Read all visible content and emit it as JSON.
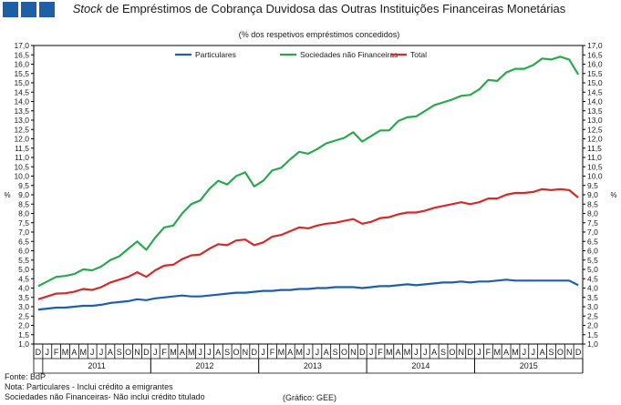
{
  "logo": {
    "colors": [
      "#1f5fa8",
      "#1f5fa8",
      "#1f5fa8"
    ]
  },
  "chart_data": {
    "type": "line",
    "title_italic": "Stock",
    "title_rest": " de Empréstimos de Cobrança Duvidosa das Outras Instituições Financeiras Monetárias",
    "subtitle": "(% dos respetivos empréstimos concedidos)",
    "ylabel": "%",
    "ylim": [
      1.0,
      17.0
    ],
    "ytick_step": 0.5,
    "month_labels": [
      "D",
      "J",
      "F",
      "M",
      "A",
      "M",
      "J",
      "J",
      "A",
      "S",
      "O",
      "N",
      "D",
      "J",
      "F",
      "M",
      "A",
      "M",
      "J",
      "J",
      "A",
      "S",
      "O",
      "N",
      "D",
      "J",
      "F",
      "M",
      "A",
      "M",
      "J",
      "J",
      "A",
      "S",
      "O",
      "N",
      "D",
      "J",
      "F",
      "M",
      "A",
      "M",
      "J",
      "J",
      "A",
      "S",
      "O",
      "N",
      "D",
      "J",
      "F",
      "M",
      "A",
      "M",
      "J",
      "J",
      "A",
      "S",
      "O",
      "N",
      "D"
    ],
    "year_groups": [
      {
        "label": "2011",
        "start": 1,
        "end": 12
      },
      {
        "label": "2012",
        "start": 13,
        "end": 24
      },
      {
        "label": "2013",
        "start": 25,
        "end": 36
      },
      {
        "label": "2014",
        "start": 37,
        "end": 48
      },
      {
        "label": "2015",
        "start": 49,
        "end": 60
      }
    ],
    "series": [
      {
        "name": "Particulares",
        "color": "#1f5fa8",
        "values": [
          2.85,
          2.9,
          2.95,
          2.95,
          3.0,
          3.05,
          3.05,
          3.1,
          3.2,
          3.25,
          3.3,
          3.4,
          3.35,
          3.45,
          3.5,
          3.55,
          3.6,
          3.55,
          3.55,
          3.6,
          3.65,
          3.7,
          3.75,
          3.75,
          3.8,
          3.85,
          3.85,
          3.9,
          3.9,
          3.95,
          3.95,
          4.0,
          4.0,
          4.05,
          4.05,
          4.05,
          4.0,
          4.05,
          4.1,
          4.1,
          4.15,
          4.2,
          4.15,
          4.2,
          4.25,
          4.3,
          4.3,
          4.35,
          4.3,
          4.35,
          4.35,
          4.4,
          4.45,
          4.4,
          4.4,
          4.4,
          4.4,
          4.4,
          4.4,
          4.4,
          4.15
        ]
      },
      {
        "name": "Sociedades não Financeiras",
        "color": "#2aa84f",
        "values": [
          4.1,
          4.35,
          4.6,
          4.65,
          4.75,
          5.0,
          4.95,
          5.15,
          5.5,
          5.7,
          6.1,
          6.5,
          6.05,
          6.7,
          7.25,
          7.35,
          8.0,
          8.5,
          8.7,
          9.3,
          9.75,
          9.55,
          10.0,
          10.2,
          9.45,
          9.75,
          10.3,
          10.45,
          10.9,
          11.3,
          11.2,
          11.45,
          11.75,
          11.9,
          12.05,
          12.35,
          11.85,
          12.15,
          12.45,
          12.45,
          12.95,
          13.15,
          13.2,
          13.5,
          13.8,
          13.95,
          14.1,
          14.3,
          14.35,
          14.65,
          15.15,
          15.1,
          15.55,
          15.75,
          15.75,
          15.95,
          16.3,
          16.25,
          16.4,
          16.25,
          15.45
        ]
      },
      {
        "name": "Total",
        "color": "#d42a2a",
        "values": [
          3.4,
          3.55,
          3.7,
          3.72,
          3.8,
          3.95,
          3.9,
          4.05,
          4.3,
          4.45,
          4.6,
          4.85,
          4.6,
          4.95,
          5.2,
          5.25,
          5.55,
          5.75,
          5.8,
          6.1,
          6.35,
          6.3,
          6.55,
          6.6,
          6.3,
          6.45,
          6.75,
          6.85,
          7.05,
          7.25,
          7.2,
          7.35,
          7.45,
          7.5,
          7.6,
          7.7,
          7.45,
          7.55,
          7.75,
          7.8,
          7.95,
          8.05,
          8.05,
          8.15,
          8.3,
          8.4,
          8.5,
          8.6,
          8.5,
          8.6,
          8.8,
          8.8,
          9.0,
          9.1,
          9.1,
          9.15,
          9.3,
          9.25,
          9.3,
          9.25,
          8.85
        ]
      }
    ]
  },
  "footer": {
    "source": "Fonte: BdP",
    "note": "Nota: Particulares - Inclui crédito a emigrantes",
    "note2": "Sociedades não Financeiras- Não inclui crédito titulado",
    "chart_ref": "(Gráfico: GEE)"
  }
}
